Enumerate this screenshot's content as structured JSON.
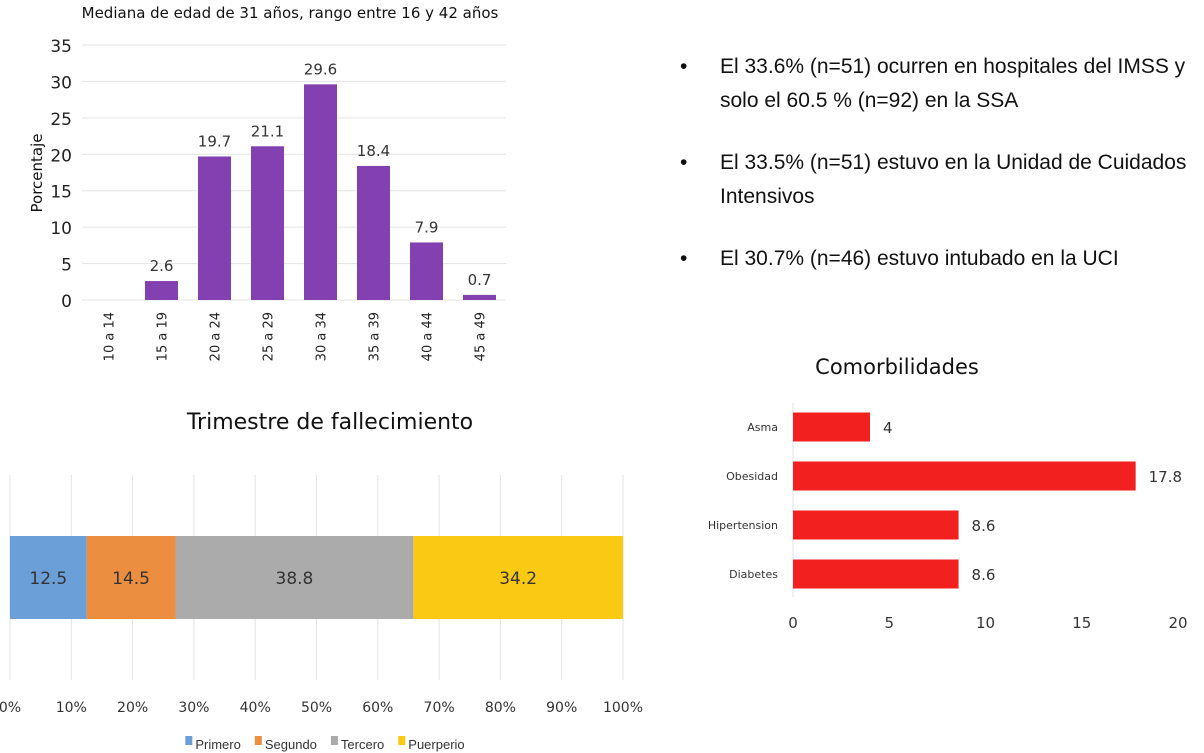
{
  "chart_data": [
    {
      "type": "bar",
      "title": "Mediana de edad de 31 años,  rango entre 16  y 42 años",
      "xlabel": "",
      "ylabel": "Porcentaje",
      "ylim": [
        0,
        35
      ],
      "yticks": [
        0,
        5,
        10,
        15,
        20,
        25,
        30,
        35
      ],
      "grid": true,
      "categories": [
        "10 a 14",
        "15 a 19",
        "20 a 24",
        "25 a 29",
        "30 a 34",
        "35 a 39",
        "40 a 44",
        "45 a 49"
      ],
      "values": [
        0,
        2.6,
        19.7,
        21.1,
        29.6,
        18.4,
        7.9,
        0.7
      ],
      "data_labels": [
        "",
        "2.6",
        "19.7",
        "21.1",
        "29.6",
        "18.4",
        "7.9",
        "0.7"
      ],
      "color": "#8340B0"
    },
    {
      "type": "bar",
      "orientation": "horizontal-stacked-100",
      "title": "Trimestre de fallecimiento",
      "xlim": [
        0,
        100
      ],
      "xticks": [
        "0%",
        "10%",
        "20%",
        "30%",
        "40%",
        "50%",
        "60%",
        "70%",
        "80%",
        "90%",
        "100%"
      ],
      "grid": true,
      "legend_position": "bottom",
      "series": [
        {
          "name": "Primero",
          "values": [
            12.5
          ],
          "color": "#6A9FD8"
        },
        {
          "name": "Segundo",
          "values": [
            14.5
          ],
          "color": "#EC8E3F"
        },
        {
          "name": "Tercero",
          "values": [
            38.8
          ],
          "color": "#ABABAB"
        },
        {
          "name": "Puerperio",
          "values": [
            34.2
          ],
          "color": "#F9C913"
        }
      ]
    },
    {
      "type": "bar",
      "orientation": "horizontal",
      "title": "Comorbilidades",
      "xlim": [
        0,
        20
      ],
      "xticks": [
        0,
        5,
        10,
        15,
        20
      ],
      "categories": [
        "Asma",
        "Obesidad",
        "Hipertension",
        "Diabetes"
      ],
      "values": [
        4,
        17.8,
        8.6,
        8.6
      ],
      "data_labels": [
        "4",
        "17.8",
        "8.6",
        "8.6"
      ],
      "color": "#F2211F"
    }
  ],
  "bullets": [
    "El 33.6% (n=51) ocurren en hospitales del IMSS y solo el 60.5 % (n=92) en la SSA",
    "El 33.5% (n=51) estuvo en la Unidad de Cuidados Intensivos",
    "El 30.7% (n=46) estuvo intubado en la UCI"
  ]
}
